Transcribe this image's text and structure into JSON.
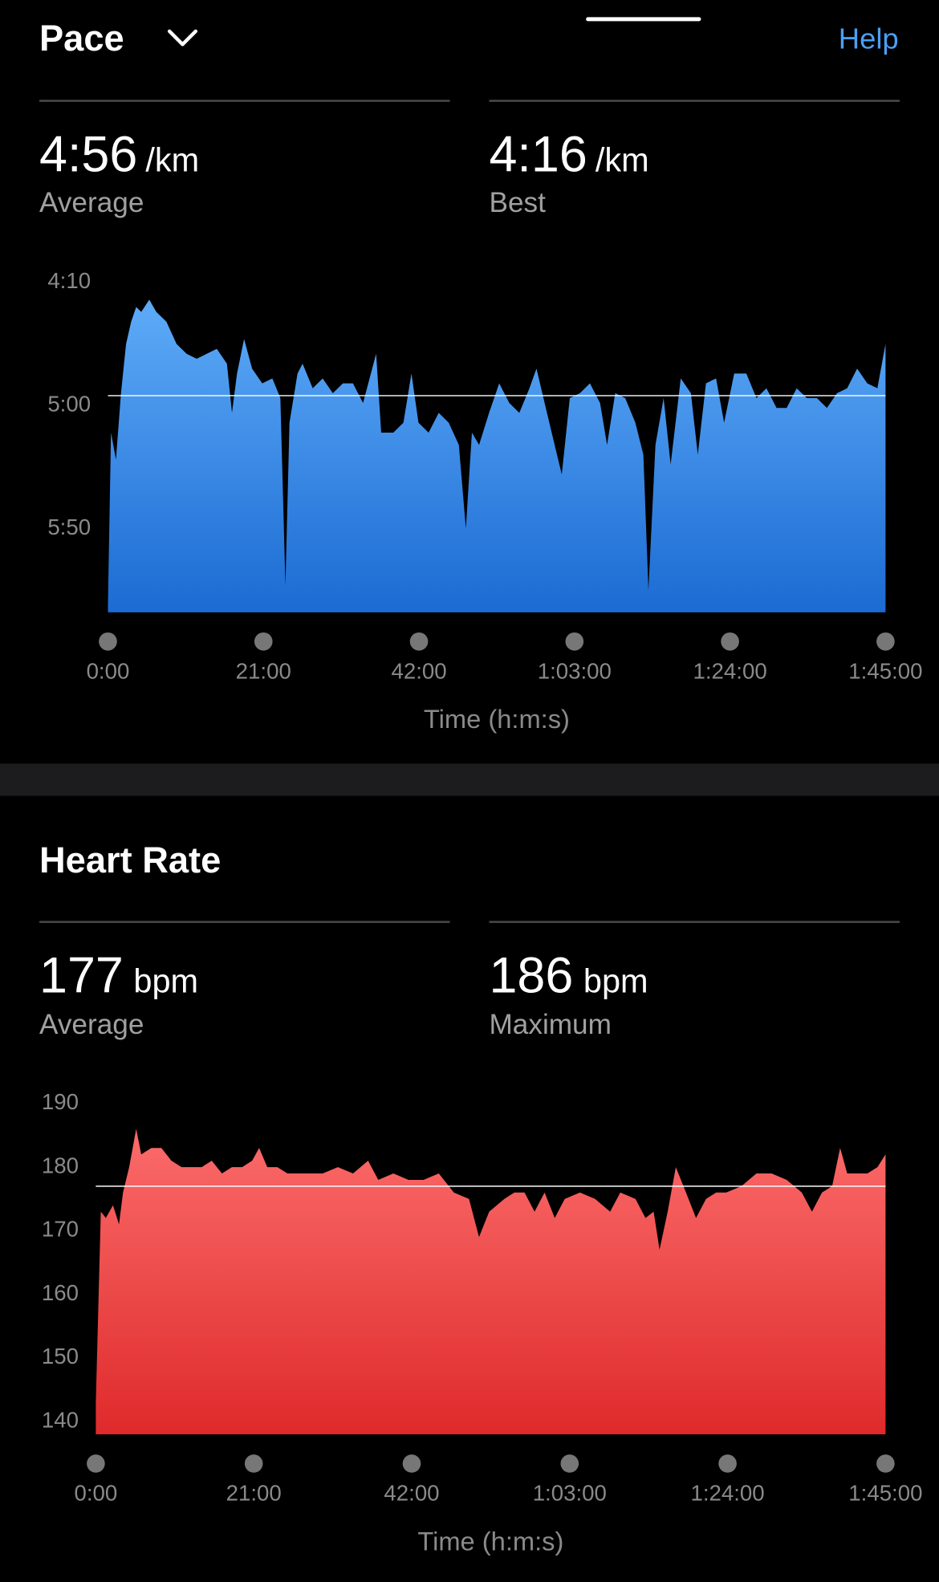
{
  "header": {
    "title": "Pace",
    "help": "Help"
  },
  "pace_stats": [
    {
      "value": "4:56",
      "unit": "/km",
      "label": "Average"
    },
    {
      "value": "4:16",
      "unit": "/km",
      "label": "Best"
    }
  ],
  "heart_rate": {
    "title": "Heart Rate"
  },
  "heart_rate_stats": [
    {
      "value": "177",
      "unit": "bpm",
      "label": "Average"
    },
    {
      "value": "186",
      "unit": "bpm",
      "label": "Maximum"
    }
  ],
  "chart_data": [
    {
      "type": "area",
      "x_label": "Time (h:m:s)",
      "color_top": "#5eabf8",
      "color_bottom": "#1b6bd3",
      "y_inverted": true,
      "average_line": 296,
      "xlim": [
        0,
        6300
      ],
      "ylim": [
        250,
        384
      ],
      "xticks": [
        {
          "value": 0,
          "label": "0:00"
        },
        {
          "value": 1260,
          "label": "21:00"
        },
        {
          "value": 2520,
          "label": "42:00"
        },
        {
          "value": 3780,
          "label": "1:03:00"
        },
        {
          "value": 5040,
          "label": "1:24:00"
        },
        {
          "value": 6300,
          "label": "1:45:00"
        }
      ],
      "yticks": [
        {
          "value": 250,
          "label": "4:10"
        },
        {
          "value": 300,
          "label": "5:00"
        },
        {
          "value": 350,
          "label": "5:50"
        }
      ],
      "x": [
        0,
        25,
        65,
        106,
        147,
        188,
        229,
        270,
        335,
        392,
        474,
        556,
        637,
        719,
        801,
        882,
        964,
        1005,
        1046,
        1103,
        1168,
        1250,
        1332,
        1397,
        1438,
        1471,
        1536,
        1577,
        1659,
        1740,
        1822,
        1904,
        1985,
        2067,
        2173,
        2214,
        2312,
        2394,
        2459,
        2516,
        2598,
        2680,
        2761,
        2843,
        2900,
        2949,
        3007,
        3088,
        3170,
        3252,
        3333,
        3415,
        3472,
        3538,
        3619,
        3677,
        3742,
        3824,
        3905,
        3987,
        4044,
        4110,
        4191,
        4273,
        4338,
        4379,
        4436,
        4502,
        4559,
        4641,
        4723,
        4779,
        4845,
        4927,
        4992,
        5074,
        5172,
        5254,
        5335,
        5417,
        5499,
        5580,
        5662,
        5744,
        5825,
        5907,
        5989,
        6070,
        6152,
        6234,
        6300
      ],
      "values": [
        381,
        311,
        322,
        295,
        275,
        266,
        260,
        262,
        257,
        262,
        266,
        275,
        279,
        281,
        279,
        277,
        283,
        303,
        287,
        273,
        285,
        291,
        289,
        297,
        373,
        307,
        287,
        283,
        293,
        289,
        295,
        291,
        291,
        299,
        279,
        311,
        311,
        307,
        287,
        307,
        311,
        303,
        307,
        316,
        350,
        311,
        316,
        303,
        291,
        299,
        303,
        293,
        285,
        299,
        316,
        328,
        297,
        295,
        291,
        299,
        316,
        295,
        297,
        307,
        320,
        375,
        316,
        297,
        324,
        289,
        295,
        320,
        291,
        289,
        307,
        287,
        287,
        297,
        293,
        301,
        301,
        293,
        297,
        297,
        301,
        295,
        293,
        285,
        291,
        293,
        275
      ]
    },
    {
      "type": "area",
      "x_label": "Time (h:m:s)",
      "color_top": "#fb6c6b",
      "color_bottom": "#df2a2b",
      "y_inverted": false,
      "average_line": 177,
      "xlim": [
        0,
        6300
      ],
      "ylim": [
        138,
        190
      ],
      "xticks": [
        {
          "value": 0,
          "label": "0:00"
        },
        {
          "value": 1260,
          "label": "21:00"
        },
        {
          "value": 2520,
          "label": "42:00"
        },
        {
          "value": 3780,
          "label": "1:03:00"
        },
        {
          "value": 5040,
          "label": "1:24:00"
        },
        {
          "value": 6300,
          "label": "1:45:00"
        }
      ],
      "yticks": [
        140,
        150,
        160,
        170,
        180,
        190
      ],
      "x": [
        0,
        40,
        80,
        137,
        185,
        217,
        266,
        322,
        362,
        443,
        523,
        603,
        684,
        764,
        845,
        925,
        1006,
        1086,
        1167,
        1247,
        1303,
        1368,
        1448,
        1529,
        1609,
        1690,
        1810,
        1931,
        2052,
        2172,
        2253,
        2374,
        2494,
        2615,
        2736,
        2856,
        2977,
        3057,
        3138,
        3259,
        3339,
        3420,
        3500,
        3580,
        3661,
        3741,
        3862,
        3983,
        4103,
        4184,
        4305,
        4385,
        4450,
        4497,
        4562,
        4627,
        4708,
        4788,
        4868,
        4949,
        5029,
        5150,
        5270,
        5391,
        5511,
        5632,
        5713,
        5793,
        5874,
        5938,
        5994,
        6075,
        6155,
        6236,
        6300
      ],
      "values": [
        143,
        173,
        172,
        174,
        171,
        176,
        180,
        186,
        182,
        183,
        183,
        181,
        180,
        180,
        180,
        181,
        179,
        180,
        180,
        181,
        183,
        180,
        180,
        179,
        179,
        179,
        179,
        180,
        179,
        181,
        178,
        179,
        178,
        178,
        179,
        176,
        175,
        169,
        173,
        175,
        176,
        176,
        173,
        176,
        172,
        175,
        176,
        175,
        173,
        176,
        175,
        172,
        173,
        167,
        173,
        180,
        176,
        172,
        175,
        176,
        176,
        177,
        179,
        179,
        178,
        176,
        173,
        176,
        177,
        183,
        179,
        179,
        179,
        180,
        182
      ]
    }
  ]
}
